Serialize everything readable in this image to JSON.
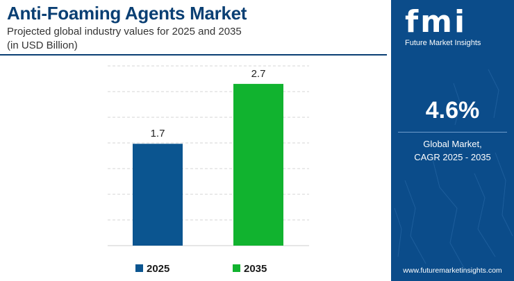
{
  "header": {
    "title": "Anti-Foaming Agents Market",
    "subtitle_line1": "Projected global industry values for 2025 and 2035",
    "subtitle_line2": "(in USD Billion)"
  },
  "chart_data": {
    "type": "bar",
    "categories": [
      "2025",
      "2035"
    ],
    "values": [
      1.7,
      2.7
    ],
    "value_labels": [
      "1.7",
      "2.7"
    ],
    "colors": [
      "#0b5590",
      "#11b32f"
    ],
    "ylim": [
      0,
      3
    ],
    "grid": true,
    "legend_position": "bottom",
    "legend": [
      {
        "label": "2025",
        "color": "#0b5590"
      },
      {
        "label": "2035",
        "color": "#11b32f"
      }
    ]
  },
  "sidebar": {
    "logo_text": "fmi",
    "logo_caption": "Future Market Insights",
    "cagr_value": "4.6%",
    "cagr_label_line1": "Global Market,",
    "cagr_label_line2": "CAGR 2025 - 2035",
    "website": "www.futuremarketinsights.com",
    "background_color": "#0b4c8a"
  }
}
